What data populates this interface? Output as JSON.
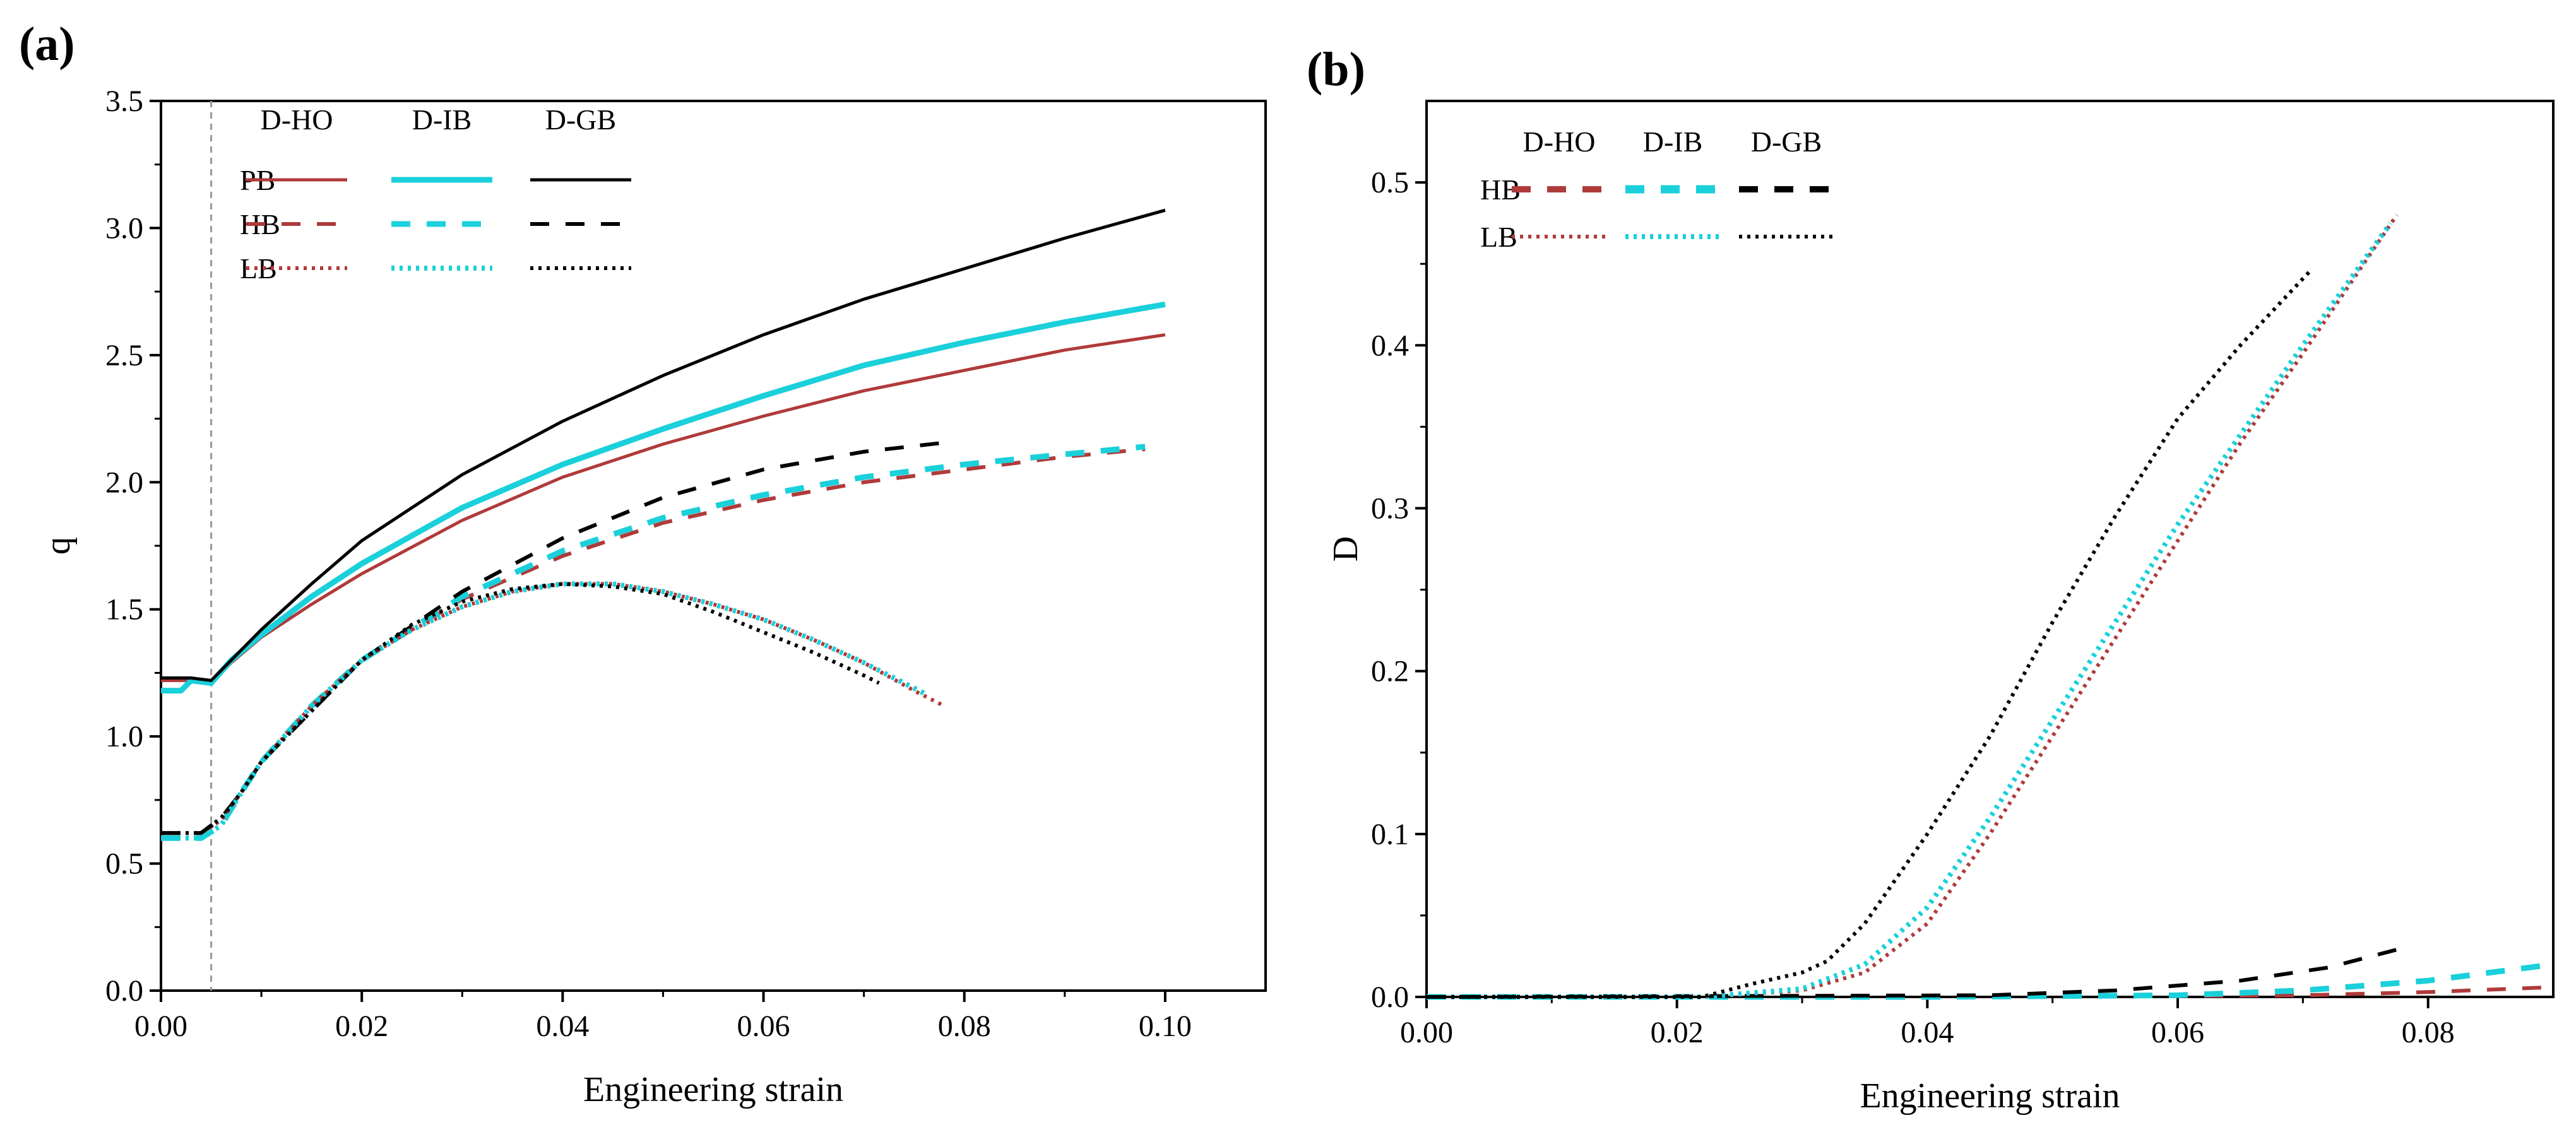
{
  "colors": {
    "HO": "#b03a3a",
    "IB": "#1ad0da",
    "GB": "#000000",
    "refline": "#999999"
  },
  "chart_data": [
    {
      "type": "line",
      "panel_label": "(a)",
      "title": "",
      "xlabel": "Engineering strain",
      "ylabel": "q",
      "xlim": [
        0,
        0.11
      ],
      "ylim": [
        0,
        3.5
      ],
      "xticks": [
        "0.00",
        "0.02",
        "0.04",
        "0.06",
        "0.08",
        "0.10"
      ],
      "yticks": [
        "0.0",
        "0.5",
        "1.0",
        "1.5",
        "2.0",
        "2.5",
        "3.0",
        "3.5"
      ],
      "reference_line_x": 0.005,
      "legend": {
        "columns": [
          "D-HO",
          "D-IB",
          "D-GB"
        ],
        "rows": [
          "PB",
          "HB",
          "LB"
        ],
        "placement": "top-left"
      },
      "series": [
        {
          "name": "PB D-HO",
          "color_key": "HO",
          "style": "solid",
          "x": [
            0,
            0.003,
            0.005,
            0.007,
            0.01,
            0.015,
            0.02,
            0.03,
            0.04,
            0.05,
            0.06,
            0.07,
            0.08,
            0.09,
            0.1
          ],
          "y": [
            1.22,
            1.22,
            1.21,
            1.29,
            1.39,
            1.52,
            1.64,
            1.85,
            2.02,
            2.15,
            2.26,
            2.36,
            2.44,
            2.52,
            2.58
          ]
        },
        {
          "name": "PB D-IB",
          "color_key": "IB",
          "style": "solid",
          "x": [
            0,
            0.002,
            0.003,
            0.005,
            0.007,
            0.01,
            0.015,
            0.02,
            0.03,
            0.04,
            0.05,
            0.06,
            0.07,
            0.08,
            0.09,
            0.1
          ],
          "y": [
            1.18,
            1.18,
            1.22,
            1.21,
            1.3,
            1.4,
            1.55,
            1.68,
            1.9,
            2.07,
            2.21,
            2.34,
            2.46,
            2.55,
            2.63,
            2.7
          ]
        },
        {
          "name": "PB D-GB",
          "color_key": "GB",
          "style": "solid",
          "x": [
            0,
            0.003,
            0.005,
            0.007,
            0.01,
            0.015,
            0.02,
            0.03,
            0.04,
            0.05,
            0.06,
            0.07,
            0.08,
            0.09,
            0.1
          ],
          "y": [
            1.23,
            1.23,
            1.22,
            1.3,
            1.42,
            1.6,
            1.77,
            2.03,
            2.24,
            2.42,
            2.58,
            2.72,
            2.84,
            2.96,
            3.07
          ]
        },
        {
          "name": "HB D-HO",
          "color_key": "HO",
          "style": "dashed",
          "x": [
            0,
            0.004,
            0.006,
            0.008,
            0.01,
            0.015,
            0.02,
            0.03,
            0.04,
            0.05,
            0.06,
            0.07,
            0.08,
            0.09,
            0.098
          ],
          "y": [
            0.62,
            0.62,
            0.67,
            0.78,
            0.9,
            1.12,
            1.3,
            1.54,
            1.71,
            1.84,
            1.93,
            2.0,
            2.05,
            2.1,
            2.13
          ]
        },
        {
          "name": "HB D-IB",
          "color_key": "IB",
          "style": "dashed",
          "x": [
            0,
            0.004,
            0.006,
            0.008,
            0.01,
            0.015,
            0.02,
            0.03,
            0.04,
            0.05,
            0.06,
            0.07,
            0.08,
            0.09,
            0.098
          ],
          "y": [
            0.6,
            0.6,
            0.65,
            0.78,
            0.9,
            1.12,
            1.3,
            1.55,
            1.73,
            1.86,
            1.95,
            2.02,
            2.07,
            2.11,
            2.14
          ]
        },
        {
          "name": "HB D-GB",
          "color_key": "GB",
          "style": "dashed",
          "x": [
            0,
            0.004,
            0.006,
            0.008,
            0.01,
            0.015,
            0.02,
            0.03,
            0.04,
            0.05,
            0.06,
            0.07,
            0.079
          ],
          "y": [
            0.62,
            0.62,
            0.68,
            0.78,
            0.9,
            1.1,
            1.3,
            1.57,
            1.78,
            1.94,
            2.05,
            2.12,
            2.16
          ]
        },
        {
          "name": "LB D-HO",
          "color_key": "HO",
          "style": "dotted",
          "x": [
            0,
            0.004,
            0.006,
            0.008,
            0.01,
            0.015,
            0.02,
            0.025,
            0.03,
            0.035,
            0.04,
            0.045,
            0.05,
            0.055,
            0.06,
            0.065,
            0.07,
            0.075,
            0.078
          ],
          "y": [
            0.62,
            0.62,
            0.67,
            0.78,
            0.9,
            1.12,
            1.3,
            1.42,
            1.51,
            1.57,
            1.6,
            1.6,
            1.57,
            1.52,
            1.46,
            1.38,
            1.29,
            1.18,
            1.12
          ]
        },
        {
          "name": "LB D-IB",
          "color_key": "IB",
          "style": "dotted",
          "x": [
            0,
            0.004,
            0.006,
            0.008,
            0.01,
            0.015,
            0.02,
            0.025,
            0.03,
            0.035,
            0.04,
            0.045,
            0.05,
            0.055,
            0.06,
            0.065,
            0.07,
            0.076
          ],
          "y": [
            0.6,
            0.6,
            0.65,
            0.78,
            0.9,
            1.12,
            1.3,
            1.42,
            1.51,
            1.57,
            1.6,
            1.6,
            1.57,
            1.52,
            1.46,
            1.38,
            1.29,
            1.17
          ]
        },
        {
          "name": "LB D-GB",
          "color_key": "GB",
          "style": "dotted",
          "x": [
            0,
            0.004,
            0.006,
            0.008,
            0.01,
            0.015,
            0.02,
            0.025,
            0.03,
            0.035,
            0.04,
            0.045,
            0.05,
            0.055,
            0.06,
            0.065,
            0.07,
            0.0715
          ],
          "y": [
            0.62,
            0.62,
            0.68,
            0.78,
            0.9,
            1.1,
            1.3,
            1.44,
            1.53,
            1.58,
            1.6,
            1.59,
            1.56,
            1.49,
            1.41,
            1.33,
            1.24,
            1.21
          ]
        }
      ]
    },
    {
      "type": "line",
      "panel_label": "(b)",
      "title": "",
      "xlabel": "Engineering strain",
      "ylabel": "D",
      "xlim": [
        0,
        0.09
      ],
      "ylim": [
        0,
        0.55
      ],
      "xticks": [
        "0.00",
        "0.02",
        "0.04",
        "0.06",
        "0.08"
      ],
      "yticks": [
        "0.0",
        "0.1",
        "0.2",
        "0.3",
        "0.4",
        "0.5"
      ],
      "legend": {
        "columns": [
          "D-HO",
          "D-IB",
          "D-GB"
        ],
        "rows": [
          "HB",
          "LB"
        ],
        "placement": "top-left"
      },
      "series": [
        {
          "name": "HB D-HO",
          "color_key": "HO",
          "style": "dashed",
          "x": [
            0,
            0.04,
            0.06,
            0.07,
            0.08,
            0.09
          ],
          "y": [
            0,
            0,
            0.0005,
            0.001,
            0.003,
            0.006
          ]
        },
        {
          "name": "HB D-IB",
          "color_key": "IB",
          "style": "dashed",
          "x": [
            0,
            0.04,
            0.06,
            0.07,
            0.08,
            0.09
          ],
          "y": [
            0,
            0,
            0.001,
            0.004,
            0.01,
            0.02
          ]
        },
        {
          "name": "HB D-GB",
          "color_key": "GB",
          "style": "dashed",
          "x": [
            0,
            0.045,
            0.055,
            0.065,
            0.072,
            0.078
          ],
          "y": [
            0,
            0.001,
            0.004,
            0.01,
            0.018,
            0.03
          ]
        },
        {
          "name": "LB D-HO",
          "color_key": "HO",
          "style": "dotted",
          "x": [
            0,
            0.022,
            0.03,
            0.035,
            0.04,
            0.045,
            0.05,
            0.055,
            0.06,
            0.065,
            0.07,
            0.0775
          ],
          "y": [
            0,
            0,
            0.004,
            0.015,
            0.045,
            0.1,
            0.16,
            0.22,
            0.28,
            0.34,
            0.395,
            0.48
          ]
        },
        {
          "name": "LB D-IB",
          "color_key": "IB",
          "style": "dotted",
          "x": [
            0,
            0.022,
            0.03,
            0.035,
            0.04,
            0.045,
            0.05,
            0.055,
            0.06,
            0.065,
            0.07,
            0.077
          ],
          "y": [
            0,
            0,
            0.005,
            0.02,
            0.055,
            0.11,
            0.17,
            0.23,
            0.29,
            0.345,
            0.4,
            0.475
          ]
        },
        {
          "name": "LB D-GB",
          "color_key": "GB",
          "style": "dotted",
          "x": [
            0,
            0.022,
            0.026,
            0.03,
            0.032,
            0.035,
            0.04,
            0.045,
            0.05,
            0.055,
            0.06,
            0.065,
            0.0705
          ],
          "y": [
            0,
            0,
            0.008,
            0.015,
            0.022,
            0.045,
            0.1,
            0.16,
            0.23,
            0.295,
            0.355,
            0.4,
            0.445
          ]
        }
      ]
    }
  ]
}
